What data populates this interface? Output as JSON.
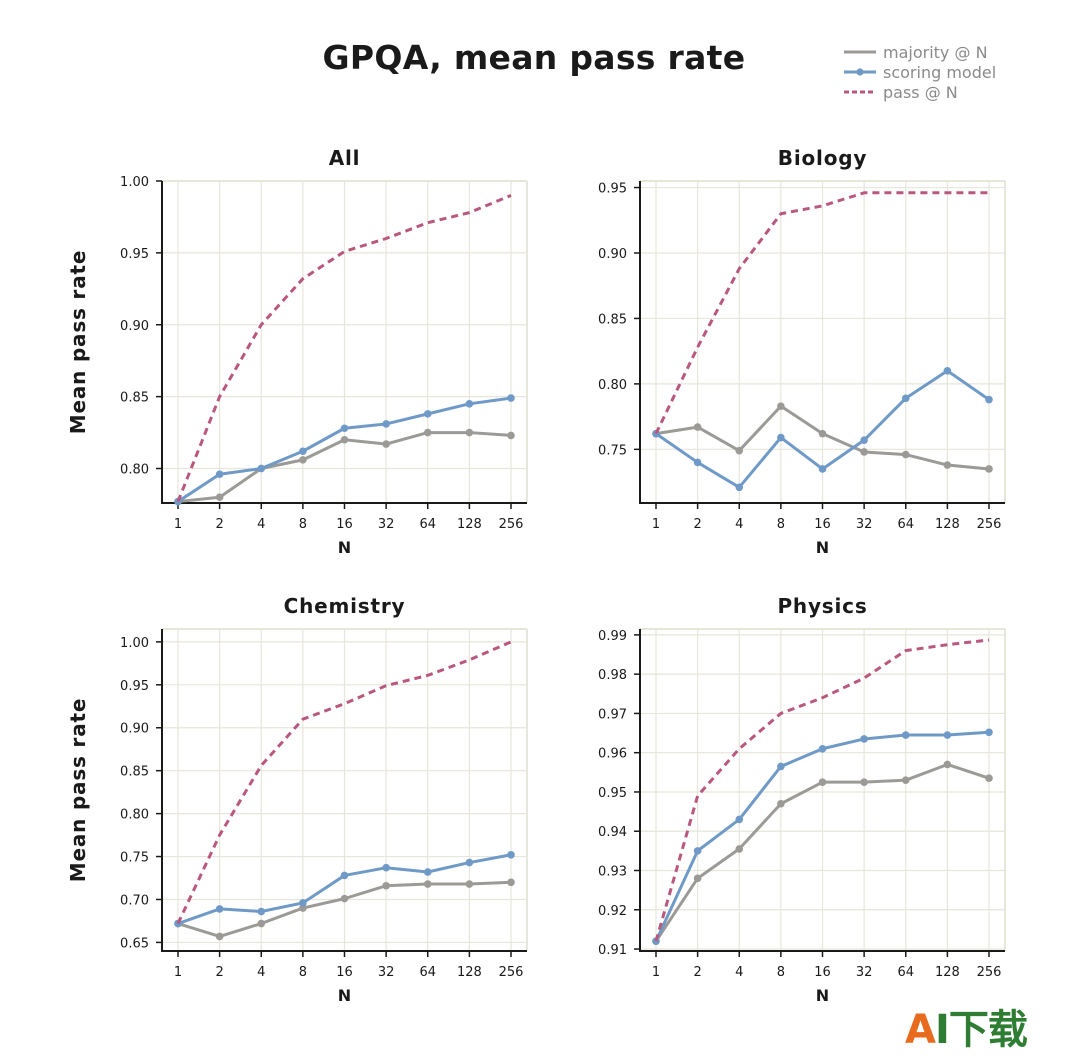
{
  "title": "GPQA, mean pass rate",
  "legend": [
    {
      "label": "majority @ N",
      "color": "#9b9a96",
      "style": "solid",
      "marker": false
    },
    {
      "label": "scoring model",
      "color": "#6f9ac7",
      "style": "solid",
      "marker": true
    },
    {
      "label": "pass @ N",
      "color": "#b9587f",
      "style": "dashed",
      "marker": false
    }
  ],
  "colors": {
    "grid": "#e7e6da",
    "axis": "#1a1a1a"
  },
  "logo": {
    "mark": "A",
    "text": "I下载"
  },
  "chart_data": [
    {
      "type": "line",
      "title": "All",
      "xlabel": "N",
      "ylabel": "Mean pass rate",
      "categories": [
        "1",
        "2",
        "4",
        "8",
        "16",
        "32",
        "64",
        "128",
        "256"
      ],
      "ylim": [
        0.776,
        1.0
      ],
      "yticks": [
        0.8,
        0.85,
        0.9,
        0.95,
        1.0
      ],
      "ytick_labels": [
        "0.80",
        "0.85",
        "0.90",
        "0.95",
        "1.00"
      ],
      "grid": true,
      "series": [
        {
          "name": "majority @ N",
          "values": [
            0.777,
            0.78,
            0.8,
            0.806,
            0.82,
            0.817,
            0.825,
            0.825,
            0.823
          ]
        },
        {
          "name": "scoring model",
          "values": [
            0.777,
            0.796,
            0.8,
            0.812,
            0.828,
            0.831,
            0.838,
            0.845,
            0.849
          ]
        },
        {
          "name": "pass @ N",
          "values": [
            0.777,
            0.85,
            0.9,
            0.932,
            0.951,
            0.96,
            0.971,
            0.978,
            0.99
          ]
        }
      ]
    },
    {
      "type": "line",
      "title": "Biology",
      "xlabel": "N",
      "ylabel": "",
      "categories": [
        "1",
        "2",
        "4",
        "8",
        "16",
        "32",
        "64",
        "128",
        "256"
      ],
      "ylim": [
        0.709,
        0.955
      ],
      "yticks": [
        0.75,
        0.8,
        0.85,
        0.9,
        0.95
      ],
      "ytick_labels": [
        "0.75",
        "0.80",
        "0.85",
        "0.90",
        "0.95"
      ],
      "grid": true,
      "series": [
        {
          "name": "majority @ N",
          "values": [
            0.762,
            0.767,
            0.749,
            0.783,
            0.762,
            0.748,
            0.746,
            0.738,
            0.735
          ]
        },
        {
          "name": "scoring model",
          "values": [
            0.762,
            0.74,
            0.721,
            0.759,
            0.735,
            0.757,
            0.789,
            0.81,
            0.788
          ]
        },
        {
          "name": "pass @ N",
          "values": [
            0.762,
            0.828,
            0.888,
            0.93,
            0.936,
            0.946,
            0.946,
            0.946,
            0.946
          ]
        }
      ]
    },
    {
      "type": "line",
      "title": "Chemistry",
      "xlabel": "N",
      "ylabel": "Mean pass rate",
      "categories": [
        "1",
        "2",
        "4",
        "8",
        "16",
        "32",
        "64",
        "128",
        "256"
      ],
      "ylim": [
        0.64,
        1.015
      ],
      "yticks": [
        0.65,
        0.7,
        0.75,
        0.8,
        0.85,
        0.9,
        0.95,
        1.0
      ],
      "ytick_labels": [
        "0.65",
        "0.70",
        "0.75",
        "0.80",
        "0.85",
        "0.90",
        "0.95",
        "1.00"
      ],
      "grid": true,
      "series": [
        {
          "name": "majority @ N",
          "values": [
            0.672,
            0.657,
            0.672,
            0.69,
            0.701,
            0.716,
            0.718,
            0.718,
            0.72
          ]
        },
        {
          "name": "scoring model",
          "values": [
            0.672,
            0.689,
            0.686,
            0.696,
            0.728,
            0.737,
            0.732,
            0.743,
            0.752
          ]
        },
        {
          "name": "pass @ N",
          "values": [
            0.672,
            0.775,
            0.856,
            0.91,
            0.928,
            0.949,
            0.961,
            0.979,
            1.0
          ]
        }
      ]
    },
    {
      "type": "line",
      "title": "Physics",
      "xlabel": "N",
      "ylabel": "",
      "categories": [
        "1",
        "2",
        "4",
        "8",
        "16",
        "32",
        "64",
        "128",
        "256"
      ],
      "ylim": [
        0.9095,
        0.9915
      ],
      "yticks": [
        0.91,
        0.92,
        0.93,
        0.94,
        0.95,
        0.96,
        0.97,
        0.98,
        0.99
      ],
      "ytick_labels": [
        "0.91",
        "0.92",
        "0.93",
        "0.94",
        "0.95",
        "0.96",
        "0.97",
        "0.98",
        "0.99"
      ],
      "grid": true,
      "series": [
        {
          "name": "majority @ N",
          "values": [
            0.912,
            0.928,
            0.9355,
            0.947,
            0.9525,
            0.9525,
            0.953,
            0.957,
            0.9535
          ]
        },
        {
          "name": "scoring model",
          "values": [
            0.912,
            0.935,
            0.943,
            0.9565,
            0.961,
            0.9635,
            0.9645,
            0.9645,
            0.9652
          ]
        },
        {
          "name": "pass @ N",
          "values": [
            0.912,
            0.949,
            0.961,
            0.97,
            0.974,
            0.979,
            0.986,
            0.9875,
            0.9887
          ]
        }
      ]
    }
  ]
}
